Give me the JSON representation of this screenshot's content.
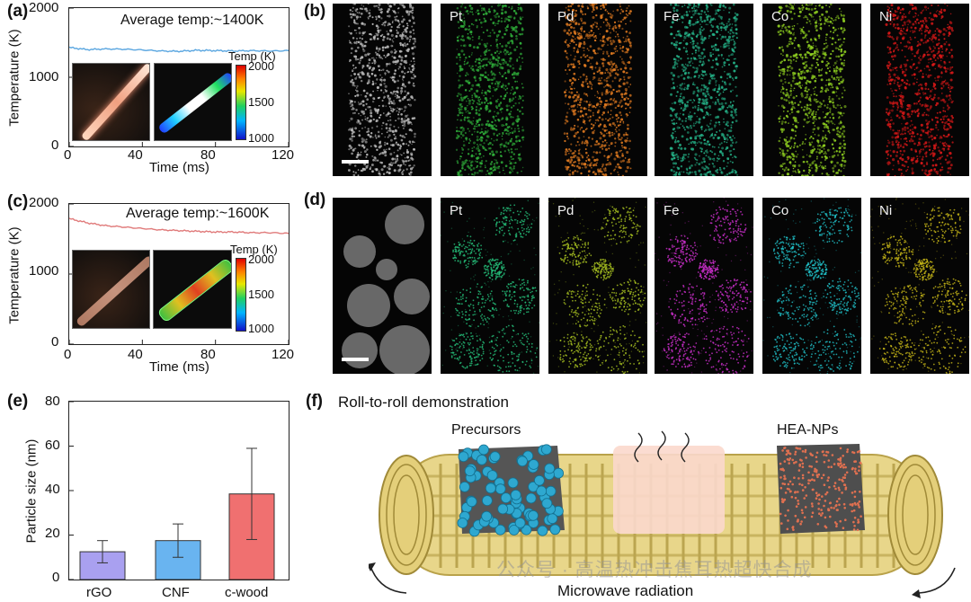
{
  "panel_a": {
    "label": "(a)",
    "annotation": "Average temp:~1400K",
    "ylabel": "Temperature (K)",
    "xlabel": "Time (ms)",
    "yticks": [
      "2000",
      "1000",
      "0"
    ],
    "xticks": [
      "0",
      "40",
      "80",
      "120"
    ],
    "colorbar_title": "Temp (K)",
    "colorbar_ticks": [
      "2000",
      "1500",
      "1000"
    ],
    "series_color": "#5aa6e0"
  },
  "panel_c": {
    "label": "(c)",
    "annotation": "Average temp:~1600K",
    "ylabel": "Temperature (K)",
    "xlabel": "Time (ms)",
    "yticks": [
      "2000",
      "1000",
      "0"
    ],
    "xticks": [
      "0",
      "40",
      "80",
      "120"
    ],
    "colorbar_title": "Temp (K)",
    "colorbar_ticks": [
      "2000",
      "1500",
      "1000"
    ],
    "series_color": "#e07a7a"
  },
  "panel_b": {
    "label": "(b)",
    "tiles": [
      "",
      "Pt",
      "Pd",
      "Fe",
      "Co",
      "Ni"
    ],
    "colors": [
      "#bdbdbd",
      "#2fae3a",
      "#e07a20",
      "#25b58a",
      "#8fd020",
      "#d81818"
    ]
  },
  "panel_d": {
    "label": "(d)",
    "tiles": [
      "",
      "Pt",
      "Pd",
      "Fe",
      "Co",
      "Ni"
    ],
    "colors": [
      "#9a9a9a",
      "#25c07a",
      "#a8c020",
      "#d030d0",
      "#20c0c8",
      "#c8b818"
    ]
  },
  "panel_e": {
    "label": "(e)",
    "ylabel": "Particle size (nm)",
    "yticks": [
      "80",
      "60",
      "40",
      "20",
      "0"
    ]
  },
  "panel_f": {
    "label": "(f)",
    "title": "Roll-to-roll demonstration",
    "precursors": "Precursors",
    "product": "HEA-NPs",
    "bottom": "Microwave radiation"
  },
  "watermark": "公众号 · 高温热冲击焦耳热超快合成",
  "chart_data": [
    {
      "type": "line",
      "panel": "(a)",
      "title": "Average temp:~1400K",
      "xlabel": "Time (ms)",
      "ylabel": "Temperature (K)",
      "xlim": [
        0,
        120
      ],
      "ylim": [
        0,
        2000
      ],
      "x": [
        0,
        10,
        20,
        30,
        40,
        50,
        60,
        70,
        80,
        90,
        100,
        110,
        120
      ],
      "series": [
        {
          "values": [
            1430,
            1400,
            1410,
            1405,
            1395,
            1380,
            1375,
            1390,
            1385,
            1380,
            1385,
            1380,
            1385
          ]
        }
      ]
    },
    {
      "type": "line",
      "panel": "(c)",
      "title": "Average temp:~1600K",
      "xlabel": "Time (ms)",
      "ylabel": "Temperature (K)",
      "xlim": [
        0,
        120
      ],
      "ylim": [
        0,
        2000
      ],
      "x": [
        0,
        10,
        20,
        30,
        40,
        50,
        60,
        70,
        80,
        90,
        100,
        110,
        120
      ],
      "series": [
        {
          "values": [
            1790,
            1730,
            1690,
            1670,
            1650,
            1630,
            1620,
            1610,
            1600,
            1600,
            1590,
            1590,
            1580
          ]
        }
      ]
    },
    {
      "type": "bar",
      "panel": "(e)",
      "ylabel": "Particle size (nm)",
      "ylim": [
        0,
        80
      ],
      "categories": [
        "rGO",
        "CNF",
        "c-wood"
      ],
      "values": [
        12.5,
        17.5,
        38.5
      ],
      "error": [
        5,
        7.5,
        20.5
      ],
      "colors": [
        "#a9a0f0",
        "#69b4f0",
        "#f07070"
      ]
    }
  ]
}
